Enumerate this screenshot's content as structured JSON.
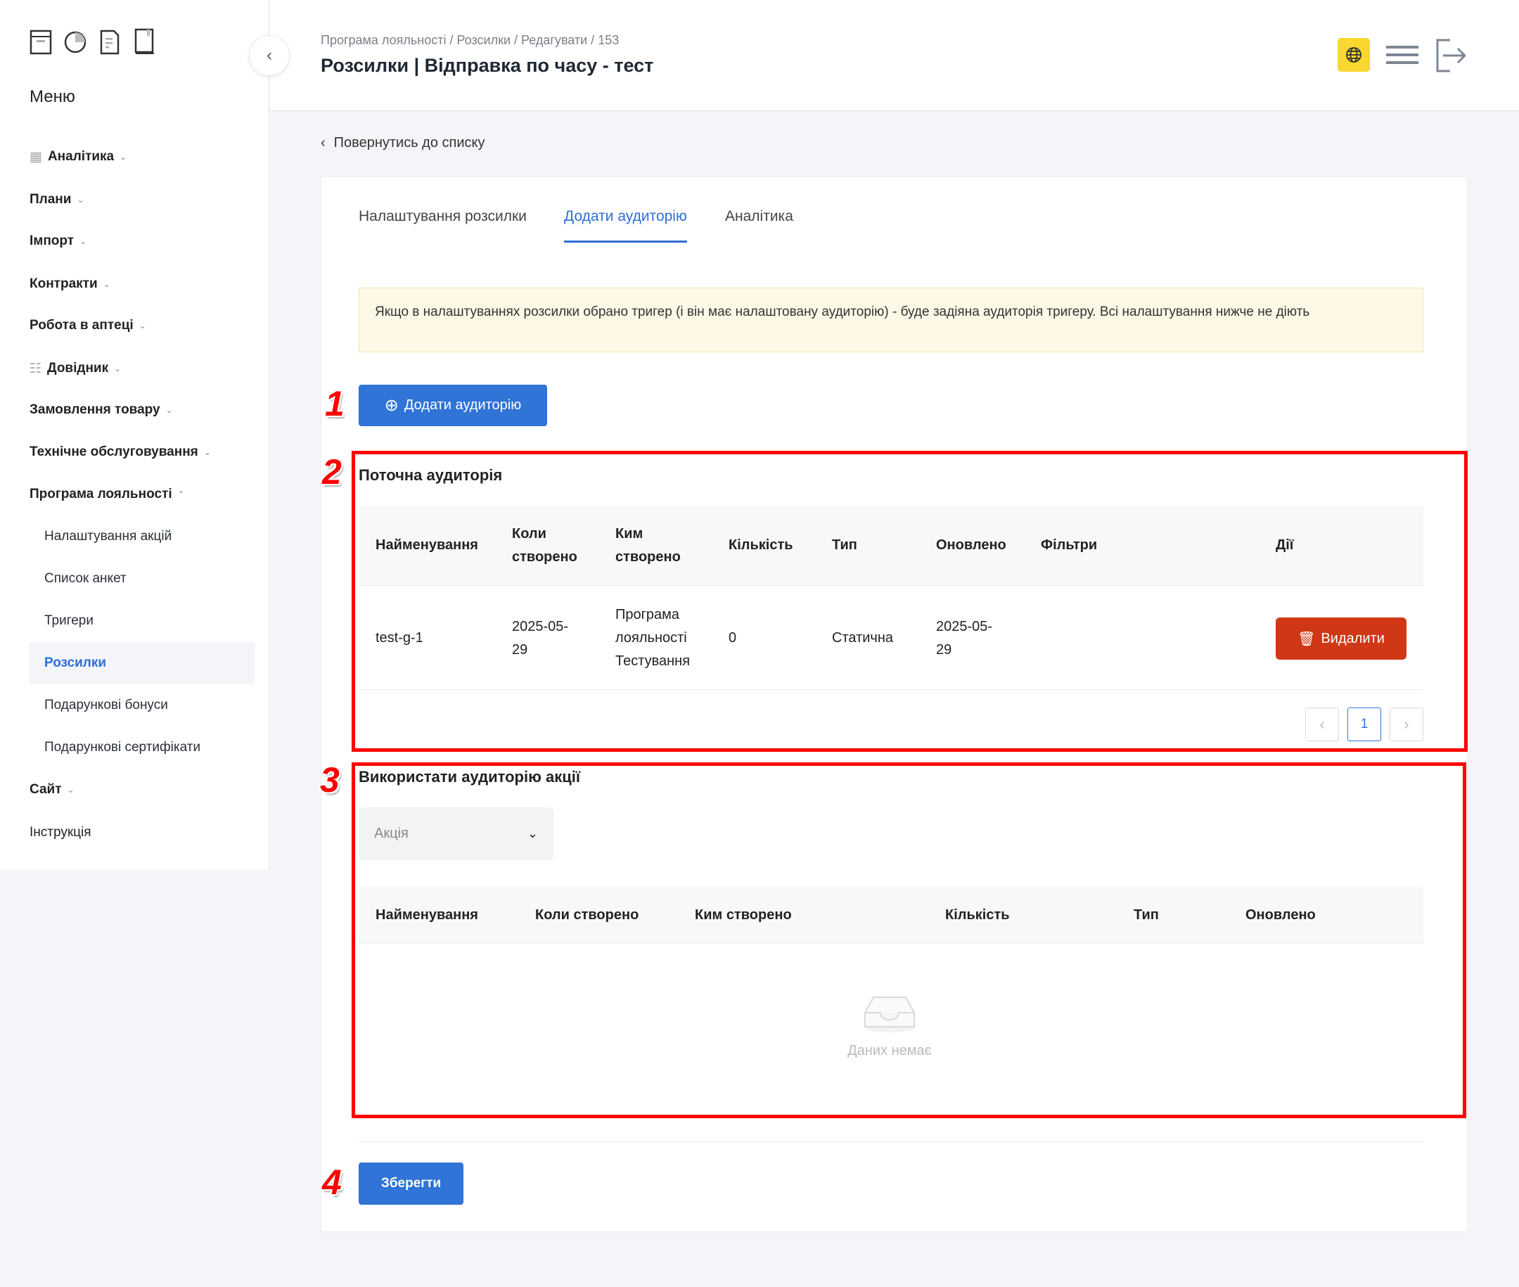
{
  "sidebar": {
    "menu_title": "Меню",
    "items": [
      {
        "label": "Аналітика"
      },
      {
        "label": "Плани"
      },
      {
        "label": "Імпорт"
      },
      {
        "label": "Контракти"
      },
      {
        "label": "Робота в аптеці"
      },
      {
        "label": "Довідник"
      },
      {
        "label": "Замовлення товару"
      },
      {
        "label": "Технічне обслуговування"
      },
      {
        "label": "Програма лояльності"
      }
    ],
    "sub_items": [
      {
        "label": "Налаштування акцій"
      },
      {
        "label": "Список анкет"
      },
      {
        "label": "Тригери"
      },
      {
        "label": "Розсилки",
        "active": true
      },
      {
        "label": "Подарункові бонуси"
      },
      {
        "label": "Подарункові сертифікати"
      }
    ],
    "bottom_items": [
      {
        "label": "Сайт"
      },
      {
        "label": "Інструкція"
      }
    ]
  },
  "header": {
    "breadcrumb": "Програма лояльності / Розсилки / Редагувати / 153",
    "title": "Розсилки | Відправка по часу - тест",
    "accent": "#f8d72e"
  },
  "back_link": "Повернутись до списку",
  "tabs": [
    {
      "label": "Налаштування розсилки"
    },
    {
      "label": "Додати аудиторію",
      "active": true
    },
    {
      "label": "Аналітика"
    }
  ],
  "alert": "Якщо в налаштуваннях розсилки обрано тригер (і він має налаштовану аудиторію) - буде задіяна аудиторія тригеру. Всі налаштування нижче не діють",
  "add_audience_button": "Додати аудиторію",
  "annotations": [
    "1",
    "2",
    "3",
    "4"
  ],
  "current": {
    "title": "Поточна аудиторія",
    "columns": [
      "Найменування",
      "Коли створено",
      "Ким створено",
      "Кількість",
      "Тип",
      "Оновлено",
      "Фільтри",
      "Дії"
    ],
    "rows": [
      {
        "name": "test-g-1",
        "created": "2025-05-29",
        "created_by": "Програма лояльності Тестування",
        "count": "0",
        "type": "Статична",
        "updated": "2025-05-29",
        "filters": "",
        "delete_label": "Видалити"
      }
    ],
    "page": "1"
  },
  "promo": {
    "title": "Використати аудиторію акції",
    "select_placeholder": "Акція",
    "columns": [
      "Найменування",
      "Коли створено",
      "Ким створено",
      "Кількість",
      "Тип",
      "Оновлено"
    ],
    "empty_text": "Даних немає"
  },
  "save_button": "Зберегти",
  "colors": {
    "primary": "#2f74d6",
    "danger": "#cf3715",
    "annotation": "#ff0000"
  }
}
